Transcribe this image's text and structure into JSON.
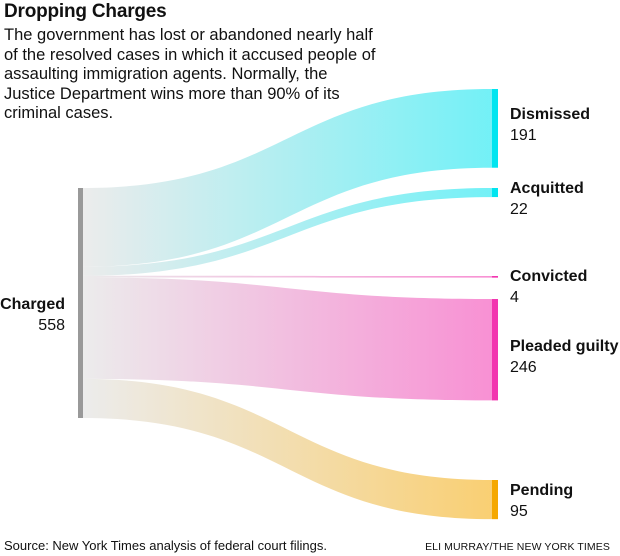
{
  "chart_data": {
    "type": "sankey",
    "title": "Dropping Charges",
    "subtitle": "The government has lost or abandoned nearly half of the resolved cases in which it accused people of assaulting immigration agents. Normally, the Justice Department wins more than 90% of its criminal cases.",
    "source": {
      "name": "Charged",
      "value": 558,
      "color": "#999999"
    },
    "targets": [
      {
        "name": "Dismissed",
        "value": 191,
        "color": "#00e5f0"
      },
      {
        "name": "Acquitted",
        "value": 22,
        "color": "#00e5f0"
      },
      {
        "name": "Convicted",
        "value": 4,
        "color": "#f236b0"
      },
      {
        "name": "Pleaded guilty",
        "value": 246,
        "color": "#f236b0"
      },
      {
        "name": "Pending",
        "value": 95,
        "color": "#f5a800"
      }
    ],
    "source_note": "Source: New York Times analysis of federal court filings.",
    "credit": "ELI MURRAY/THE NEW YORK TIMES"
  }
}
